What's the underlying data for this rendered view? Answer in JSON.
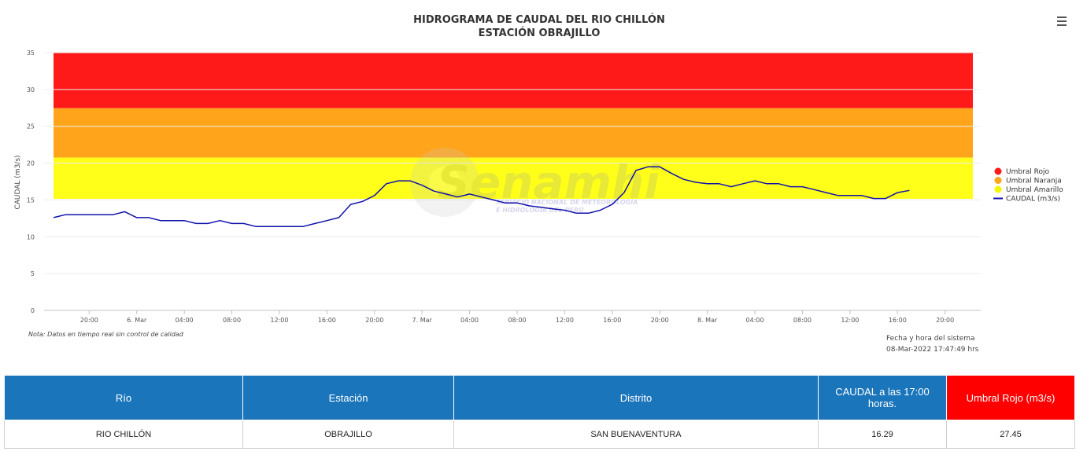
{
  "chart": {
    "title_line1": "HIDROGRAMA DE CAUDAL DEL RIO CHILLÓN",
    "title_line2": "ESTACIÓN OBRAJILLO",
    "ylabel": "CAUDAL (m3/s)",
    "note": "Nota: Datos en tiempo real sin control de calidad",
    "system_time_label": "Fecha y hora del sistema",
    "system_time_value": "08-Mar-2022 17:47:49 hrs",
    "watermark_name": "Senamhi",
    "watermark_line1": "SERVICIO NACIONAL DE METEOROLOGÍA",
    "watermark_line2": "E HIDROLOGÍA DEL PERÚ",
    "menu_icon": "hamburger-menu-icon"
  },
  "chart_data": {
    "type": "line",
    "ylim": [
      0,
      35
    ],
    "yticks": [
      0,
      5,
      10,
      15,
      20,
      25,
      30,
      35
    ],
    "xlim": [
      "2022-03-05 17:00",
      "2022-03-08 23:00"
    ],
    "xticks": [
      {
        "t": "2022-03-05 20:00",
        "label": "20:00"
      },
      {
        "t": "2022-03-06 00:00",
        "label": "6. Mar"
      },
      {
        "t": "2022-03-06 04:00",
        "label": "04:00"
      },
      {
        "t": "2022-03-06 08:00",
        "label": "08:00"
      },
      {
        "t": "2022-03-06 12:00",
        "label": "12:00"
      },
      {
        "t": "2022-03-06 16:00",
        "label": "16:00"
      },
      {
        "t": "2022-03-06 20:00",
        "label": "20:00"
      },
      {
        "t": "2022-03-07 00:00",
        "label": "7. Mar"
      },
      {
        "t": "2022-03-07 04:00",
        "label": "04:00"
      },
      {
        "t": "2022-03-07 08:00",
        "label": "08:00"
      },
      {
        "t": "2022-03-07 12:00",
        "label": "12:00"
      },
      {
        "t": "2022-03-07 16:00",
        "label": "16:00"
      },
      {
        "t": "2022-03-07 20:00",
        "label": "20:00"
      },
      {
        "t": "2022-03-08 00:00",
        "label": "8. Mar"
      },
      {
        "t": "2022-03-08 04:00",
        "label": "04:00"
      },
      {
        "t": "2022-03-08 08:00",
        "label": "08:00"
      },
      {
        "t": "2022-03-08 12:00",
        "label": "12:00"
      },
      {
        "t": "2022-03-08 16:00",
        "label": "16:00"
      },
      {
        "t": "2022-03-08 20:00",
        "label": "20:00"
      }
    ],
    "bands": [
      {
        "name": "Umbral Rojo",
        "from": 27.45,
        "to": 35,
        "color": "#ff1a1a"
      },
      {
        "name": "Umbral Naranja",
        "from": 20.75,
        "to": 27.45,
        "color": "#ffa41b"
      },
      {
        "name": "Umbral Amarillo",
        "from": 15.15,
        "to": 20.75,
        "color": "#ffff1a"
      }
    ],
    "series": [
      {
        "name": "CAUDAL (m3/s)",
        "color": "#1111aa",
        "points": [
          [
            "2022-03-05 17:00",
            12.6
          ],
          [
            "2022-03-05 18:00",
            13.0
          ],
          [
            "2022-03-05 19:00",
            13.0
          ],
          [
            "2022-03-05 20:00",
            13.0
          ],
          [
            "2022-03-05 21:00",
            13.0
          ],
          [
            "2022-03-05 22:00",
            13.0
          ],
          [
            "2022-03-05 23:00",
            13.4
          ],
          [
            "2022-03-06 00:00",
            12.6
          ],
          [
            "2022-03-06 01:00",
            12.6
          ],
          [
            "2022-03-06 02:00",
            12.2
          ],
          [
            "2022-03-06 03:00",
            12.2
          ],
          [
            "2022-03-06 04:00",
            12.2
          ],
          [
            "2022-03-06 05:00",
            11.8
          ],
          [
            "2022-03-06 06:00",
            11.8
          ],
          [
            "2022-03-06 07:00",
            12.2
          ],
          [
            "2022-03-06 08:00",
            11.8
          ],
          [
            "2022-03-06 09:00",
            11.8
          ],
          [
            "2022-03-06 10:00",
            11.4
          ],
          [
            "2022-03-06 11:00",
            11.4
          ],
          [
            "2022-03-06 12:00",
            11.4
          ],
          [
            "2022-03-06 13:00",
            11.4
          ],
          [
            "2022-03-06 14:00",
            11.4
          ],
          [
            "2022-03-06 15:00",
            11.8
          ],
          [
            "2022-03-06 16:00",
            12.2
          ],
          [
            "2022-03-06 17:00",
            12.6
          ],
          [
            "2022-03-06 18:00",
            14.4
          ],
          [
            "2022-03-06 19:00",
            14.8
          ],
          [
            "2022-03-06 20:00",
            15.6
          ],
          [
            "2022-03-06 21:00",
            17.2
          ],
          [
            "2022-03-06 22:00",
            17.6
          ],
          [
            "2022-03-06 23:00",
            17.6
          ],
          [
            "2022-03-07 00:00",
            17.0
          ],
          [
            "2022-03-07 01:00",
            16.2
          ],
          [
            "2022-03-07 02:00",
            15.8
          ],
          [
            "2022-03-07 03:00",
            15.4
          ],
          [
            "2022-03-07 04:00",
            15.8
          ],
          [
            "2022-03-07 05:00",
            15.4
          ],
          [
            "2022-03-07 06:00",
            15.0
          ],
          [
            "2022-03-07 07:00",
            14.6
          ],
          [
            "2022-03-07 08:00",
            14.6
          ],
          [
            "2022-03-07 09:00",
            14.2
          ],
          [
            "2022-03-07 10:00",
            14.0
          ],
          [
            "2022-03-07 11:00",
            13.8
          ],
          [
            "2022-03-07 12:00",
            13.6
          ],
          [
            "2022-03-07 13:00",
            13.2
          ],
          [
            "2022-03-07 14:00",
            13.2
          ],
          [
            "2022-03-07 15:00",
            13.6
          ],
          [
            "2022-03-07 16:00",
            14.4
          ],
          [
            "2022-03-07 17:00",
            16.0
          ],
          [
            "2022-03-07 18:00",
            19.0
          ],
          [
            "2022-03-07 19:00",
            19.5
          ],
          [
            "2022-03-07 20:00",
            19.5
          ],
          [
            "2022-03-07 21:00",
            18.6
          ],
          [
            "2022-03-07 22:00",
            17.8
          ],
          [
            "2022-03-07 23:00",
            17.4
          ],
          [
            "2022-03-08 00:00",
            17.2
          ],
          [
            "2022-03-08 01:00",
            17.2
          ],
          [
            "2022-03-08 02:00",
            16.8
          ],
          [
            "2022-03-08 03:00",
            17.2
          ],
          [
            "2022-03-08 04:00",
            17.6
          ],
          [
            "2022-03-08 05:00",
            17.2
          ],
          [
            "2022-03-08 06:00",
            17.2
          ],
          [
            "2022-03-08 07:00",
            16.8
          ],
          [
            "2022-03-08 08:00",
            16.8
          ],
          [
            "2022-03-08 09:00",
            16.4
          ],
          [
            "2022-03-08 10:00",
            16.0
          ],
          [
            "2022-03-08 11:00",
            15.6
          ],
          [
            "2022-03-08 12:00",
            15.6
          ],
          [
            "2022-03-08 13:00",
            15.6
          ],
          [
            "2022-03-08 14:00",
            15.2
          ],
          [
            "2022-03-08 15:00",
            15.2
          ],
          [
            "2022-03-08 16:00",
            16.0
          ],
          [
            "2022-03-08 17:00",
            16.29
          ]
        ]
      }
    ],
    "legend_position": "right"
  },
  "table": {
    "headers": [
      "Río",
      "Estación",
      "Distrito",
      "CAUDAL a las 17:00 horas.",
      "Umbral Rojo (m3/s)"
    ],
    "rows": [
      [
        "RIO CHILLÓN",
        "OBRAJILLO",
        "SAN BUENAVENTURA",
        "16.29",
        "27.45"
      ]
    ]
  }
}
